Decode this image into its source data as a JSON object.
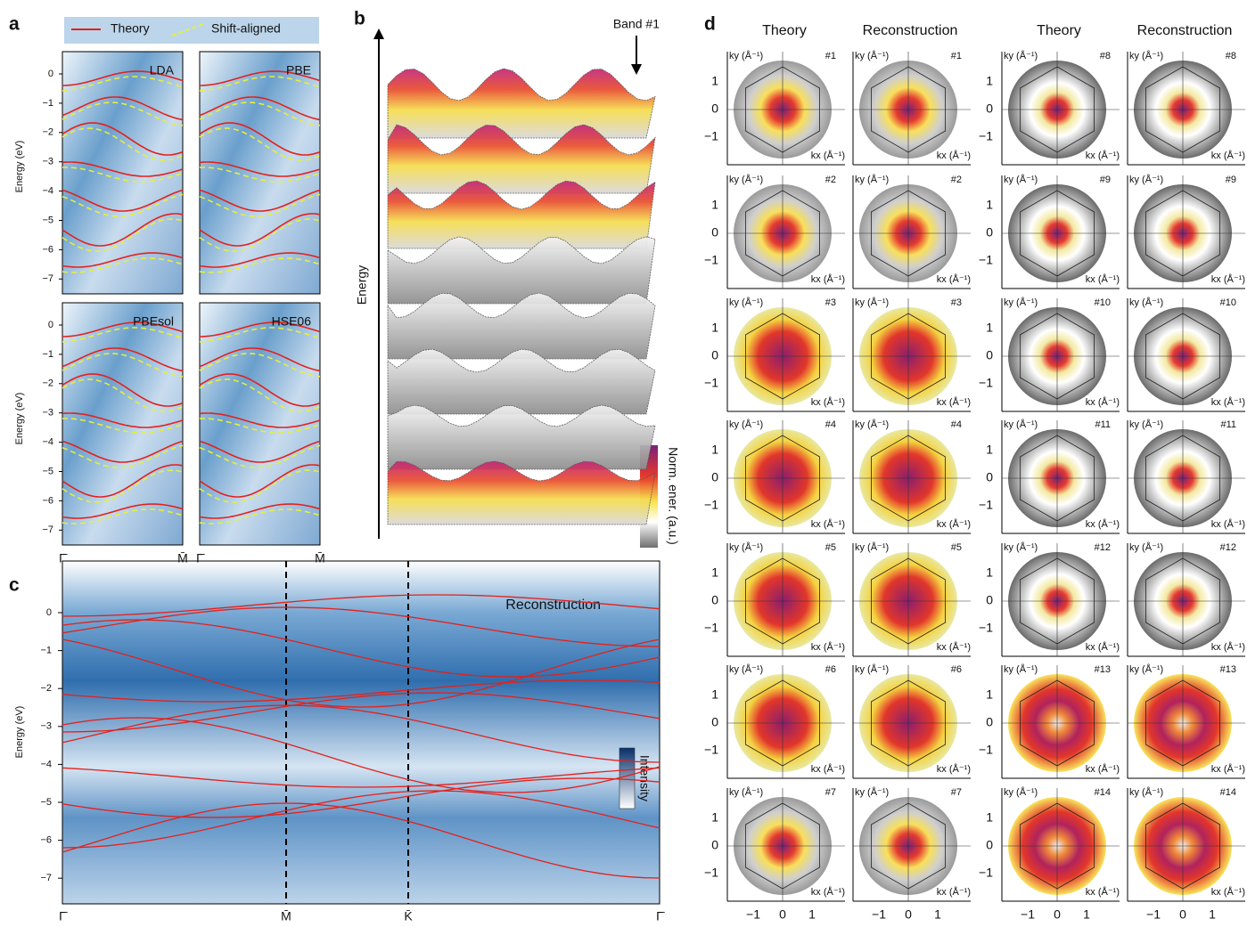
{
  "panel_a": {
    "label": "a",
    "legend": [
      "Theory",
      "Shift-aligned"
    ],
    "ylabel": "Energy (eV)",
    "yticks": [
      "0",
      "−1",
      "−2",
      "−3",
      "−4",
      "−5",
      "−6",
      "−7"
    ],
    "xticks": [
      "Γ̄",
      "M̄"
    ],
    "subplots": [
      "LDA",
      "PBE",
      "PBEsol",
      "HSE06"
    ]
  },
  "panel_b": {
    "label": "b",
    "ylabel": "Energy",
    "annotation": "Band #1",
    "colorbar_label": "Norm. ener. (a.u.)"
  },
  "panel_c": {
    "label": "c",
    "title": "Reconstruction",
    "ylabel": "Energy (eV)",
    "yticks": [
      "0",
      "−1",
      "−2",
      "−3",
      "−4",
      "−5",
      "−6",
      "−7"
    ],
    "xticks": [
      "Γ̄",
      "M̄",
      "K̄",
      "Γ̄"
    ],
    "colorbar_label": "Intensity"
  },
  "panel_d": {
    "label": "d",
    "columns": [
      "Theory",
      "Reconstruction",
      "Theory",
      "Reconstruction"
    ],
    "bands": [
      "#1",
      "#2",
      "#3",
      "#4",
      "#5",
      "#6",
      "#7",
      "#8",
      "#9",
      "#10",
      "#11",
      "#12",
      "#13",
      "#14"
    ],
    "ky_label": "ky (Å⁻¹)",
    "kx_label": "kx (Å⁻¹)",
    "ticks": [
      "−1",
      "0",
      "1"
    ]
  }
}
